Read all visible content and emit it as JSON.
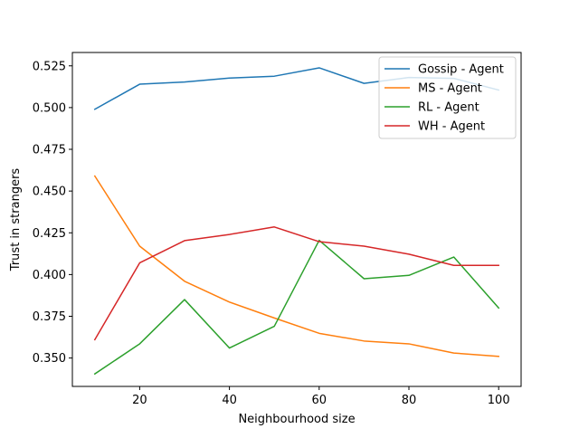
{
  "chart_data": {
    "type": "line",
    "title": "",
    "xlabel": "Neighbourhood size",
    "ylabel": "Trust in strangers",
    "xlim": [
      5,
      105
    ],
    "ylim": [
      0.333,
      0.533
    ],
    "x": [
      10,
      20,
      30,
      40,
      50,
      60,
      70,
      80,
      90,
      100
    ],
    "x_ticks": [
      20,
      40,
      60,
      80,
      100
    ],
    "y_ticks": [
      0.35,
      0.375,
      0.4,
      0.425,
      0.45,
      0.475,
      0.5,
      0.525
    ],
    "x_tick_labels": [
      "20",
      "40",
      "60",
      "80",
      "100"
    ],
    "y_tick_labels": [
      "0.350",
      "0.375",
      "0.400",
      "0.425",
      "0.450",
      "0.475",
      "0.500",
      "0.525"
    ],
    "grid": false,
    "legend_position": "top-right",
    "series": [
      {
        "name": "Gossip - Agent",
        "color": "#1f77b4",
        "values": [
          0.499,
          0.514,
          0.5153,
          0.5177,
          0.5188,
          0.5238,
          0.5145,
          0.518,
          0.5175,
          0.5105
        ]
      },
      {
        "name": "MS - Agent",
        "color": "#ff7f0e",
        "values": [
          0.459,
          0.417,
          0.396,
          0.3835,
          0.374,
          0.3648,
          0.3602,
          0.3585,
          0.353,
          0.351
        ]
      },
      {
        "name": "RL - Agent",
        "color": "#2ca02c",
        "values": [
          0.3405,
          0.3585,
          0.385,
          0.356,
          0.369,
          0.4205,
          0.3975,
          0.3995,
          0.4105,
          0.38
        ]
      },
      {
        "name": "WH - Agent",
        "color": "#d62728",
        "values": [
          0.361,
          0.407,
          0.4203,
          0.424,
          0.4285,
          0.4197,
          0.417,
          0.4122,
          0.4055,
          0.4055
        ]
      }
    ]
  }
}
